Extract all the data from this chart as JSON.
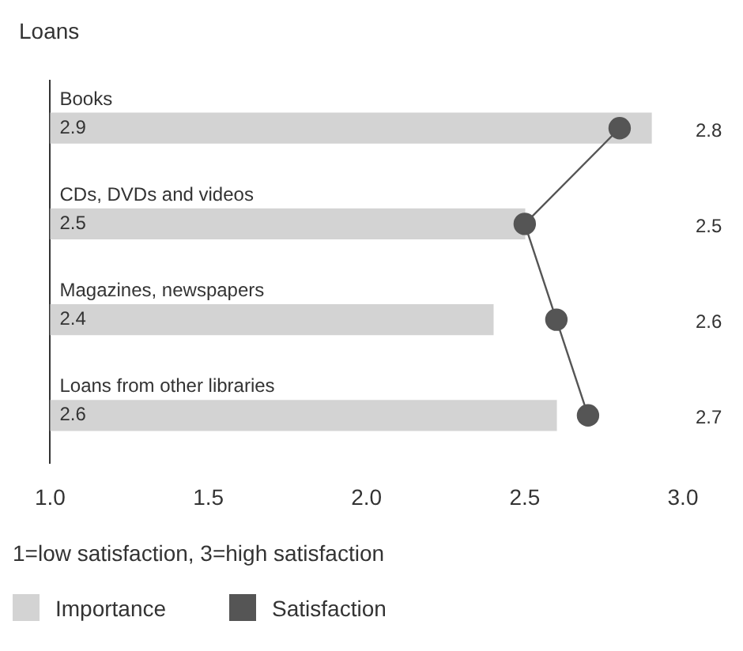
{
  "chart_data": {
    "type": "bar",
    "orientation": "horizontal",
    "title": "Loans",
    "categories": [
      "Books",
      "CDs, DVDs and videos",
      "Magazines, newspapers",
      "Loans from other libraries"
    ],
    "series": [
      {
        "name": "Importance",
        "color": "#d3d3d3",
        "values": [
          2.9,
          2.5,
          2.4,
          2.6
        ]
      },
      {
        "name": "Satisfaction",
        "type": "line",
        "color": "#555555",
        "values": [
          2.8,
          2.5,
          2.6,
          2.7
        ]
      }
    ],
    "xlim": [
      1.0,
      3.0
    ],
    "xticks": [
      {
        "value": 1,
        "label": "1.0"
      },
      {
        "value": 1.5,
        "label": "1.5"
      },
      {
        "value": 2,
        "label": "2.0"
      },
      {
        "value": 2.5,
        "label": "2.5"
      },
      {
        "value": 3,
        "label": "3.0"
      }
    ],
    "annotations": [
      "1=low satisfaction, 3=high satisfaction"
    ],
    "data_labels": true,
    "legend": "bottom left",
    "marker": "circle"
  }
}
